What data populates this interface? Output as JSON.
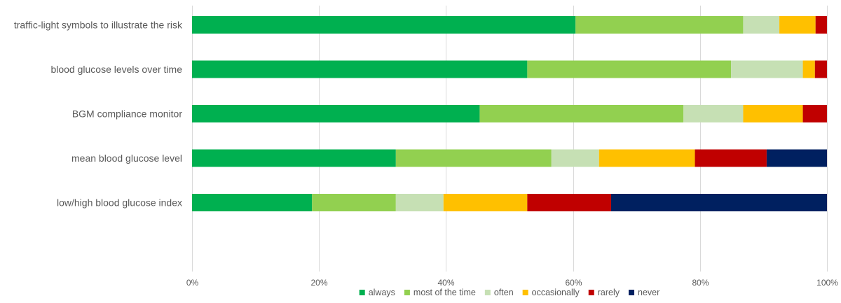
{
  "chart_data": {
    "type": "bar",
    "orientation": "horizontal",
    "stacked": "percent",
    "categories": [
      "traffic-light symbols to illustrate the risk",
      "blood glucose levels over time",
      "BGM compliance monitor",
      "mean blood glucose level",
      "low/high blood glucose index"
    ],
    "series": [
      {
        "name": "always",
        "color": "#00b050",
        "values": [
          60.4,
          52.8,
          45.3,
          32.1,
          18.9
        ]
      },
      {
        "name": "most of the time",
        "color": "#92d050",
        "values": [
          26.4,
          32.1,
          32.1,
          24.5,
          13.2
        ]
      },
      {
        "name": "often",
        "color": "#c6e0b4",
        "values": [
          5.7,
          11.3,
          9.4,
          7.5,
          7.5
        ]
      },
      {
        "name": "occasionally",
        "color": "#ffc000",
        "values": [
          5.7,
          1.9,
          9.4,
          15.1,
          13.2
        ]
      },
      {
        "name": "rarely",
        "color": "#c00000",
        "values": [
          1.8,
          1.9,
          3.8,
          11.3,
          13.2
        ]
      },
      {
        "name": "never",
        "color": "#002060",
        "values": [
          0,
          0,
          0,
          9.5,
          34.0
        ]
      }
    ],
    "xlim": [
      0,
      100
    ],
    "x_ticks": [
      "0%",
      "20%",
      "40%",
      "60%",
      "80%",
      "100%"
    ],
    "grid": true,
    "legend_position": "bottom"
  }
}
